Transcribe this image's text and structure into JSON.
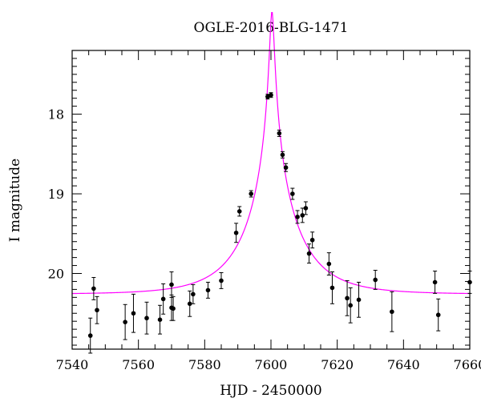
{
  "chart_data": {
    "type": "scatter",
    "title": "OGLE-2016-BLG-1471",
    "xlabel": "HJD - 2450000",
    "ylabel": "I magnitude",
    "xlim": [
      7540,
      7660
    ],
    "ylim": [
      20.95,
      17.2
    ],
    "y_inverted": true,
    "x_ticks": [
      7540,
      7560,
      7580,
      7600,
      7620,
      7640,
      7660
    ],
    "y_ticks": [
      18,
      19,
      20
    ],
    "colors": {
      "data": "#000000",
      "model": "#ff00ff"
    },
    "series": [
      {
        "type": "errorbar",
        "points": [
          {
            "x": 7545.5,
            "y": 20.78,
            "err": 0.22
          },
          {
            "x": 7546.5,
            "y": 20.19,
            "err": 0.14
          },
          {
            "x": 7547.5,
            "y": 20.46,
            "err": 0.17
          },
          {
            "x": 7556.0,
            "y": 20.61,
            "err": 0.22
          },
          {
            "x": 7558.5,
            "y": 20.5,
            "err": 0.24
          },
          {
            "x": 7562.5,
            "y": 20.56,
            "err": 0.2
          },
          {
            "x": 7566.5,
            "y": 20.58,
            "err": 0.18
          },
          {
            "x": 7567.5,
            "y": 20.32,
            "err": 0.19
          },
          {
            "x": 7570.0,
            "y": 20.14,
            "err": 0.16
          },
          {
            "x": 7570.0,
            "y": 20.43,
            "err": 0.16
          },
          {
            "x": 7570.5,
            "y": 20.44,
            "err": 0.15
          },
          {
            "x": 7575.5,
            "y": 20.38,
            "err": 0.16
          },
          {
            "x": 7576.5,
            "y": 20.26,
            "err": 0.12
          },
          {
            "x": 7581.0,
            "y": 20.21,
            "err": 0.1
          },
          {
            "x": 7585.0,
            "y": 20.09,
            "err": 0.1
          },
          {
            "x": 7589.5,
            "y": 19.49,
            "err": 0.12
          },
          {
            "x": 7590.5,
            "y": 19.22,
            "err": 0.06
          },
          {
            "x": 7594.0,
            "y": 19.0,
            "err": 0.04
          },
          {
            "x": 7599.0,
            "y": 17.78,
            "err": 0.03
          },
          {
            "x": 7600.0,
            "y": 17.76,
            "err": 0.03
          },
          {
            "x": 7602.5,
            "y": 18.24,
            "err": 0.04
          },
          {
            "x": 7603.5,
            "y": 18.51,
            "err": 0.04
          },
          {
            "x": 7604.5,
            "y": 18.67,
            "err": 0.05
          },
          {
            "x": 7606.5,
            "y": 19.0,
            "err": 0.07
          },
          {
            "x": 7608.0,
            "y": 19.29,
            "err": 0.08
          },
          {
            "x": 7609.5,
            "y": 19.27,
            "err": 0.09
          },
          {
            "x": 7610.5,
            "y": 19.18,
            "err": 0.08
          },
          {
            "x": 7611.5,
            "y": 19.75,
            "err": 0.12
          },
          {
            "x": 7612.5,
            "y": 19.58,
            "err": 0.1
          },
          {
            "x": 7617.5,
            "y": 19.88,
            "err": 0.14
          },
          {
            "x": 7618.5,
            "y": 20.18,
            "err": 0.2
          },
          {
            "x": 7623.0,
            "y": 20.31,
            "err": 0.22
          },
          {
            "x": 7624.0,
            "y": 20.4,
            "err": 0.22
          },
          {
            "x": 7626.5,
            "y": 20.33,
            "err": 0.22
          },
          {
            "x": 7631.5,
            "y": 20.08,
            "err": 0.12
          },
          {
            "x": 7636.5,
            "y": 20.48,
            "err": 0.25
          },
          {
            "x": 7649.5,
            "y": 20.11,
            "err": 0.14
          },
          {
            "x": 7650.5,
            "y": 20.52,
            "err": 0.2
          },
          {
            "x": 7660.0,
            "y": 20.11,
            "err": 0.14
          }
        ]
      },
      {
        "type": "line",
        "model": {
          "t0": 7600.3,
          "u0": 0.038,
          "tE": 16.0,
          "I_base": 20.26
        }
      }
    ]
  }
}
